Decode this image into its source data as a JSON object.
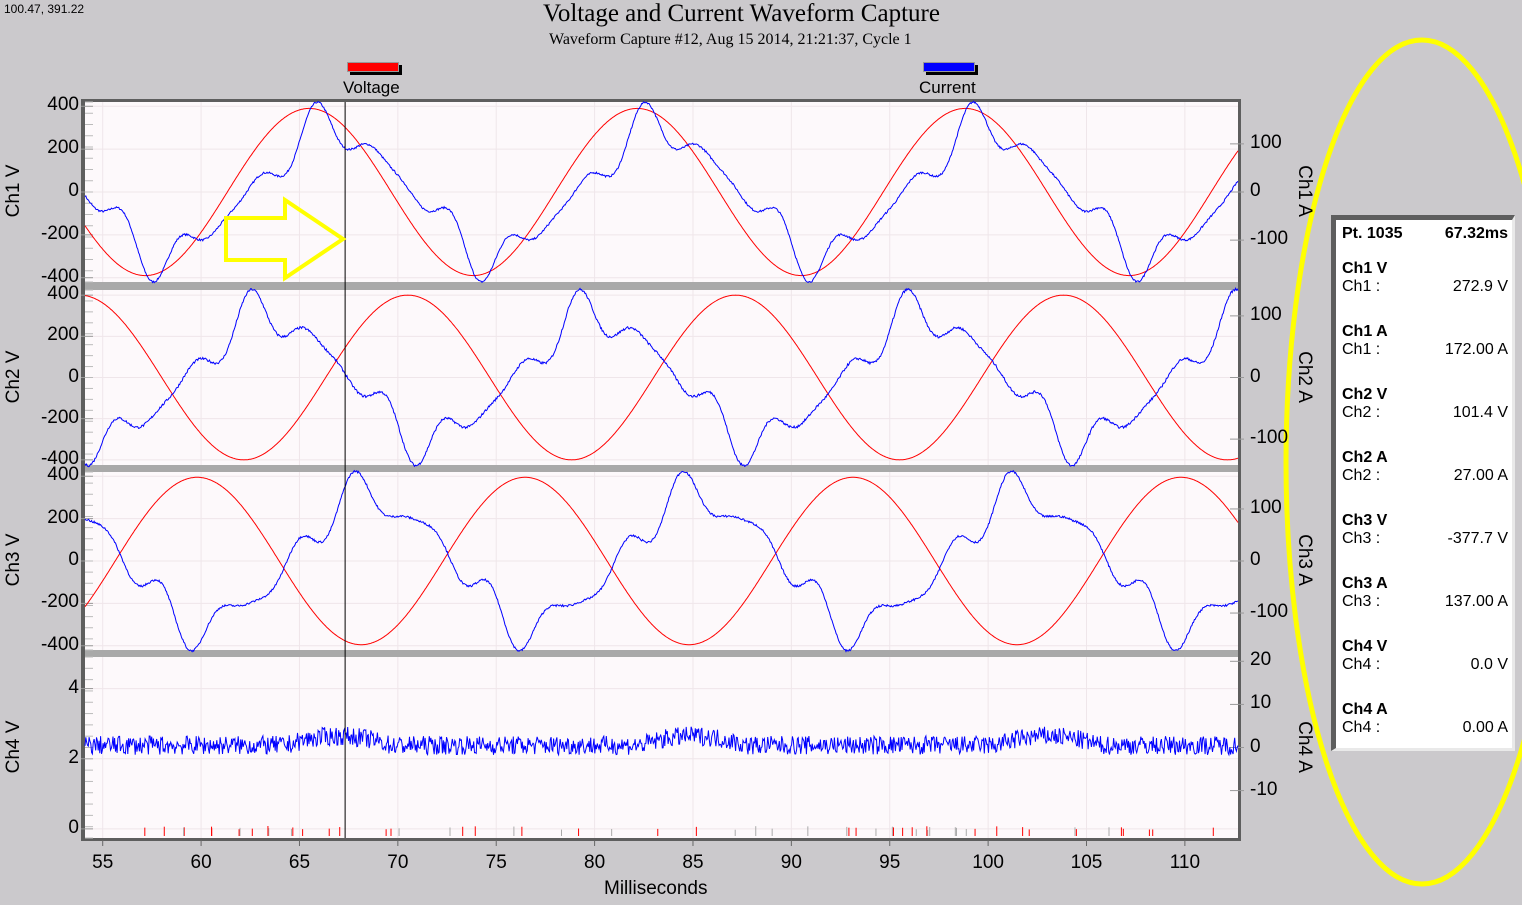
{
  "cursor_readout_top": "100.47, 391.22",
  "chart_data": {
    "type": "line",
    "title": "Voltage and Current Waveform Capture",
    "subtitle": "Waveform Capture #12, Aug 15 2014, 21:21:37,  Cycle 1",
    "xlabel": "Milliseconds",
    "xlim": [
      54.1,
      112.7
    ],
    "x_ticks": [
      "55",
      "60",
      "65",
      "70",
      "75",
      "80",
      "85",
      "90",
      "95",
      "100",
      "105",
      "110"
    ],
    "grid": true,
    "legend": {
      "placement": "top",
      "items": [
        {
          "name": "Voltage",
          "color": "#ff0000"
        },
        {
          "name": "Current",
          "color": "#0000ff"
        }
      ]
    },
    "cursor_ms": 67.32,
    "panels": [
      {
        "left_label": "Ch1 V",
        "right_label": "Ch1 A",
        "v_ylim": [
          -420,
          420
        ],
        "a_ylim": [
          -187,
          187
        ],
        "v_ticks": [
          "400",
          "200",
          "0",
          "-200",
          "-400"
        ],
        "a_ticks": [
          "100",
          "0",
          "-100"
        ],
        "voltage": {
          "amplitude": 390,
          "frequency_hz": 60,
          "peak_ms": 65.5
        },
        "current": {
          "fundamental": 130,
          "peak_ms": 66.6,
          "harmonics": [
            [
              3,
              18,
              0.6
            ],
            [
              5,
              30,
              1.4
            ],
            [
              7,
              14,
              2.1
            ]
          ]
        }
      },
      {
        "left_label": "Ch2 V",
        "right_label": "Ch2 A",
        "v_ylim": [
          -425,
          425
        ],
        "a_ylim": [
          -142,
          142
        ],
        "v_ticks": [
          "400",
          "200",
          "0",
          "-200",
          "-400"
        ],
        "a_ticks": [
          "100",
          "0",
          "-100"
        ],
        "voltage": {
          "amplitude": 400,
          "frequency_hz": 60,
          "peak_ms": 70.5
        },
        "current": {
          "fundamental": 100,
          "peak_ms": 63.4,
          "harmonics": [
            [
              3,
              12,
              0.9
            ],
            [
              5,
              24,
              1.6
            ],
            [
              7,
              12,
              2.4
            ]
          ]
        }
      },
      {
        "left_label": "Ch3 V",
        "right_label": "Ch3 A",
        "v_ylim": [
          -420,
          420
        ],
        "a_ylim": [
          -171,
          171
        ],
        "v_ticks": [
          "400",
          "200",
          "0",
          "-200",
          "-400"
        ],
        "a_ticks": [
          "100",
          "0",
          "-100"
        ],
        "voltage": {
          "amplitude": 395,
          "frequency_hz": 60,
          "peak_ms": 59.8
        },
        "current": {
          "fundamental": 125,
          "peak_ms": 68.6,
          "harmonics": [
            [
              3,
              15,
              1.1
            ],
            [
              5,
              28,
              1.2
            ],
            [
              7,
              13,
              2.6
            ]
          ]
        }
      },
      {
        "left_label": "Ch4 V",
        "right_label": "Ch4 A",
        "v_ylim": [
          -0.26,
          4.9
        ],
        "a_ylim": [
          -21,
          21
        ],
        "v_ticks": [
          "4",
          "2",
          "0"
        ],
        "a_ticks": [
          "20",
          "10",
          "0",
          "-10"
        ],
        "voltage": {
          "amplitude": 0,
          "frequency_hz": 60,
          "peak_ms": 0
        },
        "current": {
          "fundamental": 0,
          "offset": 0.5,
          "noise": 2.2,
          "peak_ms": 0,
          "harmonics": []
        }
      }
    ]
  },
  "readout": {
    "point": "Pt. 1035",
    "time": "67.32ms",
    "groups": [
      {
        "name": "Ch1 V",
        "label": "Ch1 :",
        "value": "272.9 V"
      },
      {
        "name": "Ch1 A",
        "label": "Ch1 :",
        "value": "172.00 A"
      },
      {
        "name": "Ch2 V",
        "label": "Ch2 :",
        "value": "101.4 V"
      },
      {
        "name": "Ch2 A",
        "label": "Ch2 :",
        "value": "27.00 A"
      },
      {
        "name": "Ch3 V",
        "label": "Ch3 :",
        "value": "-377.7 V"
      },
      {
        "name": "Ch3 A",
        "label": "Ch3 :",
        "value": "137.00 A"
      },
      {
        "name": "Ch4 V",
        "label": "Ch4 :",
        "value": "0.0 V"
      },
      {
        "name": "Ch4 A",
        "label": "Ch4 :",
        "value": "0.00 A"
      }
    ]
  },
  "annotations": {
    "arrow_color": "#ffff00",
    "ellipse_color": "#ffff00"
  }
}
